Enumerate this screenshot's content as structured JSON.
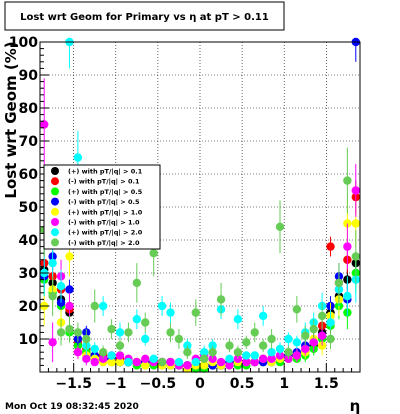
{
  "chart_data": {
    "type": "scatter",
    "title": "Lost wrt Geom for Primary vs   η at pT > 0.11",
    "xlabel": "η",
    "ylabel": "Lost  wrt  Geom (%)",
    "xlim": [
      -1.9,
      1.9
    ],
    "ylim": [
      0,
      100
    ],
    "xticks": [
      -1.5,
      -1,
      -0.5,
      0,
      0.5,
      1,
      1.5
    ],
    "xtick_labels": [
      "−1.5",
      "−1",
      "−0.5",
      "0",
      "0.5",
      "1",
      "1.5"
    ],
    "yticks": [
      10,
      20,
      30,
      40,
      50,
      60,
      70,
      80,
      90,
      100
    ],
    "ytick_labels": [
      "10",
      "20",
      "30",
      "40",
      "50",
      "60",
      "70",
      "80",
      "90",
      "100"
    ],
    "grid": true,
    "legend_position": "center-left",
    "timestamp": "Mon Oct 19 08:32:45 2020",
    "series": [
      {
        "name": "(+) with pT/|q| > 0.1",
        "color": "#000000",
        "x": [
          -1.85,
          -1.75,
          -1.65,
          -1.55,
          -1.45,
          -1.35,
          -1.25,
          -1.15,
          -1.05,
          -0.95,
          -0.85,
          -0.75,
          -0.65,
          -0.55,
          -0.45,
          -0.35,
          -0.25,
          -0.15,
          -0.05,
          0.05,
          0.15,
          0.25,
          0.35,
          0.45,
          0.55,
          0.65,
          0.75,
          0.85,
          0.95,
          1.05,
          1.15,
          1.25,
          1.35,
          1.45,
          1.55,
          1.65,
          1.75,
          1.85
        ],
        "y": [
          31,
          27,
          22,
          18,
          8,
          6,
          5,
          4,
          4,
          3,
          3,
          3,
          3,
          3,
          3,
          3,
          2,
          2,
          2,
          2,
          2,
          2,
          3,
          3,
          3,
          3,
          3,
          3,
          4,
          4,
          5,
          6,
          8,
          12,
          18,
          23,
          28,
          33
        ],
        "err": [
          3,
          3,
          2,
          2,
          2,
          1,
          1,
          1,
          1,
          1,
          1,
          1,
          1,
          1,
          1,
          1,
          1,
          1,
          1,
          1,
          1,
          1,
          1,
          1,
          1,
          1,
          1,
          1,
          1,
          1,
          1,
          1,
          2,
          2,
          2,
          3,
          3,
          3
        ]
      },
      {
        "name": "(-) with pT/|q| > 0.1",
        "color": "#ff0000",
        "x": [
          -1.85,
          -1.75,
          -1.65,
          -1.55,
          -1.45,
          -1.35,
          -1.25,
          -1.15,
          -1.05,
          -0.95,
          -0.85,
          -0.75,
          -0.65,
          -0.55,
          -0.45,
          -0.35,
          -0.25,
          -0.15,
          -0.05,
          0.05,
          0.15,
          0.25,
          0.35,
          0.45,
          0.55,
          0.65,
          0.75,
          0.85,
          0.95,
          1.05,
          1.15,
          1.25,
          1.35,
          1.45,
          1.55,
          1.65,
          1.75,
          1.85
        ],
        "y": [
          33,
          29,
          25,
          19,
          9,
          7,
          5,
          5,
          4,
          4,
          3,
          3,
          3,
          3,
          3,
          2,
          2,
          2,
          2,
          2,
          2,
          2,
          3,
          3,
          3,
          3,
          4,
          4,
          4,
          5,
          5,
          7,
          9,
          14,
          38,
          27,
          34,
          53
        ],
        "err": [
          4,
          3,
          3,
          2,
          2,
          1,
          1,
          1,
          1,
          1,
          1,
          1,
          1,
          1,
          1,
          1,
          1,
          1,
          1,
          1,
          1,
          1,
          1,
          1,
          1,
          1,
          1,
          1,
          1,
          1,
          1,
          1,
          2,
          2,
          3,
          3,
          4,
          5
        ]
      },
      {
        "name": "(+) with pT/|q| > 0.5",
        "color": "#00ff00",
        "x": [
          -1.85,
          -1.75,
          -1.65,
          -1.55,
          -1.45,
          -1.35,
          -1.25,
          -1.15,
          -1.05,
          -0.95,
          -0.85,
          -0.75,
          -0.65,
          -0.55,
          -0.45,
          -0.35,
          -0.25,
          -0.15,
          -0.05,
          0.05,
          0.15,
          0.25,
          0.35,
          0.45,
          0.55,
          0.65,
          0.75,
          0.85,
          0.95,
          1.05,
          1.15,
          1.25,
          1.35,
          1.45,
          1.55,
          1.65,
          1.75,
          1.85
        ],
        "y": [
          28,
          24,
          20,
          12,
          8,
          6,
          4,
          4,
          3,
          3,
          3,
          2,
          2,
          2,
          2,
          2,
          2,
          2,
          1,
          1,
          2,
          2,
          2,
          2,
          2,
          3,
          3,
          3,
          3,
          4,
          4,
          5,
          7,
          10,
          14,
          20,
          18,
          30
        ],
        "err": [
          5,
          4,
          3,
          3,
          2,
          2,
          1,
          1,
          1,
          1,
          1,
          1,
          1,
          1,
          1,
          1,
          1,
          1,
          1,
          1,
          1,
          1,
          1,
          1,
          1,
          1,
          1,
          1,
          1,
          1,
          1,
          2,
          2,
          3,
          3,
          4,
          5,
          6
        ]
      },
      {
        "name": "(-) with pT/|q| > 0.5",
        "color": "#0000ff",
        "x": [
          -1.85,
          -1.75,
          -1.65,
          -1.55,
          -1.45,
          -1.35,
          -1.25,
          -1.15,
          -1.05,
          -0.95,
          -0.85,
          -0.75,
          -0.65,
          -0.55,
          -0.45,
          -0.35,
          -0.25,
          -0.15,
          -0.05,
          0.05,
          0.15,
          0.25,
          0.35,
          0.45,
          0.55,
          0.65,
          0.75,
          0.85,
          0.95,
          1.05,
          1.15,
          1.25,
          1.35,
          1.45,
          1.55,
          1.65,
          1.75,
          1.85
        ],
        "y": [
          29,
          35,
          21,
          25,
          10,
          12,
          5,
          4,
          4,
          3,
          3,
          3,
          3,
          3,
          3,
          2,
          2,
          2,
          2,
          2,
          2,
          2,
          3,
          3,
          3,
          3,
          3,
          4,
          4,
          5,
          6,
          8,
          9,
          11,
          20,
          29,
          22,
          100
        ],
        "err": [
          5,
          4,
          3,
          3,
          2,
          2,
          1,
          1,
          1,
          1,
          1,
          1,
          1,
          1,
          1,
          1,
          1,
          1,
          1,
          1,
          1,
          1,
          1,
          1,
          1,
          1,
          1,
          1,
          1,
          1,
          1,
          2,
          2,
          3,
          3,
          4,
          5,
          6
        ]
      },
      {
        "name": "(+) with pT/|q| > 1.0",
        "color": "#ffff00",
        "x": [
          -1.85,
          -1.75,
          -1.65,
          -1.55,
          -1.45,
          -1.35,
          -1.25,
          -1.15,
          -1.05,
          -0.95,
          -0.85,
          -0.75,
          -0.65,
          -0.55,
          -0.45,
          -0.35,
          -0.25,
          -0.15,
          -0.05,
          0.05,
          0.15,
          0.25,
          0.35,
          0.45,
          0.55,
          0.65,
          0.75,
          0.85,
          0.95,
          1.05,
          1.15,
          1.25,
          1.35,
          1.45,
          1.55,
          1.65,
          1.75,
          1.85
        ],
        "y": [
          20,
          25,
          15,
          35,
          6,
          5,
          4,
          3,
          3,
          3,
          4,
          3,
          2,
          3,
          2,
          2,
          2,
          1,
          2,
          2,
          3,
          2,
          2,
          3,
          3,
          3,
          4,
          3,
          4,
          4,
          5,
          6,
          10,
          8,
          17,
          22,
          45,
          45
        ],
        "err": [
          6,
          5,
          4,
          6,
          2,
          2,
          1,
          1,
          1,
          1,
          1,
          1,
          1,
          1,
          1,
          1,
          1,
          1,
          1,
          1,
          1,
          1,
          1,
          1,
          1,
          1,
          1,
          1,
          1,
          1,
          2,
          2,
          3,
          3,
          4,
          5,
          7,
          7
        ]
      },
      {
        "name": "(-) with pT/|q| > 1.0",
        "color": "#ff00ff",
        "x": [
          -1.85,
          -1.75,
          -1.65,
          -1.55,
          -1.45,
          -1.35,
          -1.25,
          -1.15,
          -1.05,
          -0.95,
          -0.85,
          -0.75,
          -0.65,
          -0.55,
          -0.45,
          -0.35,
          -0.25,
          -0.15,
          -0.05,
          0.05,
          0.15,
          0.25,
          0.35,
          0.45,
          0.55,
          0.65,
          0.75,
          0.85,
          0.95,
          1.05,
          1.15,
          1.25,
          1.35,
          1.45,
          1.55,
          1.65,
          1.75,
          1.85
        ],
        "y": [
          75,
          9,
          29,
          20,
          6,
          4,
          3,
          4,
          5,
          5,
          4,
          3,
          4,
          3,
          3,
          3,
          2,
          2,
          4,
          5,
          4,
          3,
          2,
          4,
          3,
          3,
          4,
          4,
          5,
          4,
          5,
          7,
          9,
          11,
          15,
          25,
          38,
          55
        ],
        "err": [
          14,
          6,
          5,
          4,
          2,
          2,
          1,
          1,
          1,
          1,
          1,
          1,
          1,
          1,
          1,
          1,
          1,
          1,
          1,
          1,
          1,
          1,
          1,
          1,
          1,
          1,
          1,
          1,
          1,
          1,
          2,
          2,
          3,
          3,
          4,
          5,
          7,
          8
        ]
      },
      {
        "name": "(+) with pT/|q| > 2.0",
        "color": "#00ffff",
        "x": [
          -1.85,
          -1.75,
          -1.65,
          -1.55,
          -1.45,
          -1.35,
          -1.25,
          -1.15,
          -1.05,
          -0.95,
          -0.85,
          -0.75,
          -0.65,
          -0.55,
          -0.45,
          -0.35,
          -0.25,
          -0.15,
          -0.05,
          0.05,
          0.15,
          0.25,
          0.35,
          0.45,
          0.55,
          0.65,
          0.75,
          0.85,
          0.95,
          1.05,
          1.15,
          1.25,
          1.35,
          1.45,
          1.55,
          1.65,
          1.75,
          1.85
        ],
        "y": [
          30,
          33,
          26,
          100,
          65,
          8,
          7,
          20,
          5,
          12,
          3,
          16,
          10,
          4,
          20,
          18,
          3,
          8,
          3,
          6,
          8,
          19,
          4,
          16,
          5,
          5,
          17,
          6,
          7,
          10,
          9,
          12,
          15,
          20,
          15,
          25,
          23,
          28
        ],
        "err": [
          7,
          6,
          5,
          8,
          8,
          3,
          2,
          3,
          1,
          3,
          1,
          3,
          2,
          1,
          3,
          3,
          1,
          2,
          1,
          2,
          2,
          3,
          1,
          3,
          1,
          1,
          3,
          1,
          2,
          2,
          2,
          3,
          3,
          4,
          4,
          5,
          6,
          7
        ]
      },
      {
        "name": "(-) with pT/|q| > 2.0",
        "color": "#66cc55",
        "x": [
          -1.85,
          -1.75,
          -1.65,
          -1.55,
          -1.45,
          -1.35,
          -1.25,
          -1.15,
          -1.05,
          -0.95,
          -0.85,
          -0.75,
          -0.65,
          -0.55,
          -0.45,
          -0.35,
          -0.25,
          -0.15,
          -0.05,
          0.05,
          0.15,
          0.25,
          0.35,
          0.45,
          0.55,
          0.65,
          0.75,
          0.85,
          0.95,
          1.05,
          1.15,
          1.25,
          1.35,
          1.45,
          1.55,
          1.65,
          1.75,
          1.85
        ],
        "y": [
          43,
          23,
          12,
          13,
          12,
          10,
          20,
          6,
          13,
          8,
          12,
          27,
          15,
          36,
          3,
          12,
          10,
          6,
          18,
          4,
          6,
          22,
          8,
          6,
          9,
          12,
          8,
          10,
          44,
          6,
          19,
          11,
          13,
          17,
          10,
          27,
          58,
          35
        ],
        "err": [
          8,
          6,
          4,
          4,
          3,
          3,
          5,
          2,
          3,
          2,
          3,
          6,
          3,
          7,
          1,
          3,
          3,
          2,
          4,
          1,
          2,
          5,
          2,
          2,
          2,
          3,
          2,
          3,
          8,
          2,
          4,
          3,
          3,
          4,
          3,
          6,
          10,
          8
        ]
      }
    ]
  }
}
